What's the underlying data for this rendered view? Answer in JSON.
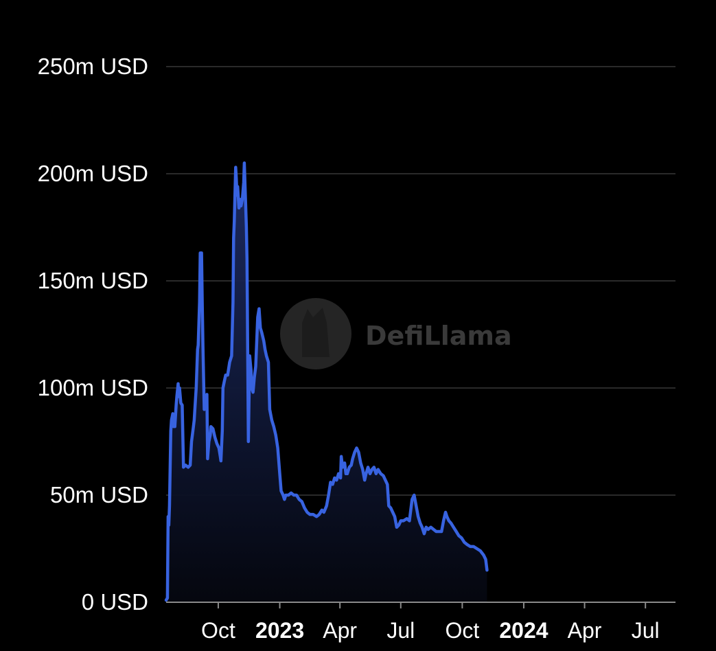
{
  "watermark": "DefiLlama",
  "colors": {
    "line": "#3863e0",
    "grid": "#2a2a2a",
    "text": "#ffffff",
    "background": "#000000"
  },
  "chart_data": {
    "type": "area",
    "title": "",
    "xlabel": "",
    "ylabel": "",
    "ylim": [
      0,
      250
    ],
    "y_unit": "m USD",
    "grid": true,
    "y_ticks": [
      {
        "value": 0,
        "label": "0 USD"
      },
      {
        "value": 50,
        "label": "50m USD"
      },
      {
        "value": 100,
        "label": "100m USD"
      },
      {
        "value": 150,
        "label": "150m USD"
      },
      {
        "value": 200,
        "label": "200m USD"
      },
      {
        "value": 250,
        "label": "250m USD"
      }
    ],
    "xlim": [
      "2022-07-15",
      "2024-08-15"
    ],
    "x_ticks": [
      {
        "date": "2022-10-01",
        "label": "Oct",
        "bold": false
      },
      {
        "date": "2023-01-01",
        "label": "2023",
        "bold": true
      },
      {
        "date": "2023-04-01",
        "label": "Apr",
        "bold": false
      },
      {
        "date": "2023-07-01",
        "label": "Jul",
        "bold": false
      },
      {
        "date": "2023-10-01",
        "label": "Oct",
        "bold": false
      },
      {
        "date": "2024-01-01",
        "label": "2024",
        "bold": true
      },
      {
        "date": "2024-04-01",
        "label": "Apr",
        "bold": false
      },
      {
        "date": "2024-07-01",
        "label": "Jul",
        "bold": false
      }
    ],
    "series": [
      {
        "values": [
          [
            "2022-07-15",
            1
          ],
          [
            "2022-07-17",
            2
          ],
          [
            "2022-07-18",
            40
          ],
          [
            "2022-07-19",
            36
          ],
          [
            "2022-07-20",
            45
          ],
          [
            "2022-07-22",
            80
          ],
          [
            "2022-07-23",
            85
          ],
          [
            "2022-07-25",
            88
          ],
          [
            "2022-07-26",
            82
          ],
          [
            "2022-07-27",
            86
          ],
          [
            "2022-07-28",
            82
          ],
          [
            "2022-07-30",
            92
          ],
          [
            "2022-07-31",
            96
          ],
          [
            "2022-08-02",
            102
          ],
          [
            "2022-08-03",
            96
          ],
          [
            "2022-08-04",
            100
          ],
          [
            "2022-08-06",
            93
          ],
          [
            "2022-08-08",
            92
          ],
          [
            "2022-08-10",
            63
          ],
          [
            "2022-08-13",
            64
          ],
          [
            "2022-08-17",
            63
          ],
          [
            "2022-08-20",
            64
          ],
          [
            "2022-08-22",
            75
          ],
          [
            "2022-08-24",
            80
          ],
          [
            "2022-08-26",
            85
          ],
          [
            "2022-08-28",
            95
          ],
          [
            "2022-08-29",
            100
          ],
          [
            "2022-08-31",
            118
          ],
          [
            "2022-09-01",
            120
          ],
          [
            "2022-09-03",
            140
          ],
          [
            "2022-09-04",
            163
          ],
          [
            "2022-09-05",
            155
          ],
          [
            "2022-09-06",
            163
          ],
          [
            "2022-09-07",
            140
          ],
          [
            "2022-09-08",
            120
          ],
          [
            "2022-09-10",
            90
          ],
          [
            "2022-09-12",
            95
          ],
          [
            "2022-09-14",
            97
          ],
          [
            "2022-09-15",
            67
          ],
          [
            "2022-09-17",
            75
          ],
          [
            "2022-09-19",
            78
          ],
          [
            "2022-09-20",
            82
          ],
          [
            "2022-09-23",
            81
          ],
          [
            "2022-09-26",
            77
          ],
          [
            "2022-09-29",
            74
          ],
          [
            "2022-10-02",
            72
          ],
          [
            "2022-10-04",
            68
          ],
          [
            "2022-10-05",
            66
          ],
          [
            "2022-10-07",
            80
          ],
          [
            "2022-10-08",
            100
          ],
          [
            "2022-10-10",
            103
          ],
          [
            "2022-10-12",
            106
          ],
          [
            "2022-10-15",
            106
          ],
          [
            "2022-10-18",
            112
          ],
          [
            "2022-10-21",
            115
          ],
          [
            "2022-10-23",
            140
          ],
          [
            "2022-10-24",
            170
          ],
          [
            "2022-10-25",
            178
          ],
          [
            "2022-10-27",
            203
          ],
          [
            "2022-10-28",
            198
          ],
          [
            "2022-10-29",
            190
          ],
          [
            "2022-10-30",
            194
          ],
          [
            "2022-11-01",
            184
          ],
          [
            "2022-11-03",
            188
          ],
          [
            "2022-11-04",
            185
          ],
          [
            "2022-11-06",
            188
          ],
          [
            "2022-11-08",
            196
          ],
          [
            "2022-11-09",
            205
          ],
          [
            "2022-11-10",
            195
          ],
          [
            "2022-11-12",
            175
          ],
          [
            "2022-11-13",
            160
          ],
          [
            "2022-11-15",
            75
          ],
          [
            "2022-11-17",
            115
          ],
          [
            "2022-11-19",
            108
          ],
          [
            "2022-11-20",
            100
          ],
          [
            "2022-11-22",
            98
          ],
          [
            "2022-11-24",
            105
          ],
          [
            "2022-11-26",
            110
          ],
          [
            "2022-11-29",
            133
          ],
          [
            "2022-12-01",
            137
          ],
          [
            "2022-12-03",
            128
          ],
          [
            "2022-12-05",
            126
          ],
          [
            "2022-12-08",
            122
          ],
          [
            "2022-12-10",
            118
          ],
          [
            "2022-12-12",
            115
          ],
          [
            "2022-12-15",
            112
          ],
          [
            "2022-12-17",
            90
          ],
          [
            "2022-12-20",
            85
          ],
          [
            "2022-12-23",
            82
          ],
          [
            "2022-12-26",
            78
          ],
          [
            "2022-12-29",
            72
          ],
          [
            "2023-01-01",
            60
          ],
          [
            "2023-01-03",
            52
          ],
          [
            "2023-01-06",
            50
          ],
          [
            "2023-01-08",
            48
          ],
          [
            "2023-01-10",
            50
          ],
          [
            "2023-01-14",
            50
          ],
          [
            "2023-01-18",
            51
          ],
          [
            "2023-01-22",
            50
          ],
          [
            "2023-01-26",
            50
          ],
          [
            "2023-01-30",
            48
          ],
          [
            "2023-02-03",
            47
          ],
          [
            "2023-02-07",
            44
          ],
          [
            "2023-02-11",
            42
          ],
          [
            "2023-02-15",
            41
          ],
          [
            "2023-02-20",
            41
          ],
          [
            "2023-02-25",
            40
          ],
          [
            "2023-03-01",
            41
          ],
          [
            "2023-03-05",
            43
          ],
          [
            "2023-03-08",
            42
          ],
          [
            "2023-03-12",
            45
          ],
          [
            "2023-03-15",
            50
          ],
          [
            "2023-03-18",
            56
          ],
          [
            "2023-03-21",
            55
          ],
          [
            "2023-03-24",
            58
          ],
          [
            "2023-03-27",
            57
          ],
          [
            "2023-03-30",
            60
          ],
          [
            "2023-04-02",
            58
          ],
          [
            "2023-04-03",
            68
          ],
          [
            "2023-04-05",
            63
          ],
          [
            "2023-04-08",
            65
          ],
          [
            "2023-04-10",
            60
          ],
          [
            "2023-04-12",
            60
          ],
          [
            "2023-04-15",
            63
          ],
          [
            "2023-04-18",
            64
          ],
          [
            "2023-04-20",
            67
          ],
          [
            "2023-04-23",
            70
          ],
          [
            "2023-04-26",
            72
          ],
          [
            "2023-04-29",
            70
          ],
          [
            "2023-05-02",
            65
          ],
          [
            "2023-05-05",
            62
          ],
          [
            "2023-05-08",
            57
          ],
          [
            "2023-05-10",
            60
          ],
          [
            "2023-05-13",
            63
          ],
          [
            "2023-05-16",
            60
          ],
          [
            "2023-05-19",
            62
          ],
          [
            "2023-05-22",
            63
          ],
          [
            "2023-05-25",
            60
          ],
          [
            "2023-05-28",
            62
          ],
          [
            "2023-06-01",
            60
          ],
          [
            "2023-06-05",
            59
          ],
          [
            "2023-06-08",
            57
          ],
          [
            "2023-06-11",
            55
          ],
          [
            "2023-06-13",
            45
          ],
          [
            "2023-06-16",
            44
          ],
          [
            "2023-06-19",
            42
          ],
          [
            "2023-06-22",
            40
          ],
          [
            "2023-06-25",
            35
          ],
          [
            "2023-06-28",
            36
          ],
          [
            "2023-07-01",
            38
          ],
          [
            "2023-07-05",
            38
          ],
          [
            "2023-07-10",
            39
          ],
          [
            "2023-07-14",
            38
          ],
          [
            "2023-07-18",
            48
          ],
          [
            "2023-07-21",
            50
          ],
          [
            "2023-07-24",
            45
          ],
          [
            "2023-07-27",
            40
          ],
          [
            "2023-07-30",
            37
          ],
          [
            "2023-08-02",
            35
          ],
          [
            "2023-08-05",
            32
          ],
          [
            "2023-08-08",
            35
          ],
          [
            "2023-08-11",
            34
          ],
          [
            "2023-08-15",
            35
          ],
          [
            "2023-08-19",
            34
          ],
          [
            "2023-08-23",
            33
          ],
          [
            "2023-08-27",
            33
          ],
          [
            "2023-08-31",
            33
          ],
          [
            "2023-09-03",
            38
          ],
          [
            "2023-09-06",
            42
          ],
          [
            "2023-09-08",
            40
          ],
          [
            "2023-09-11",
            38
          ],
          [
            "2023-09-14",
            37
          ],
          [
            "2023-09-18",
            35
          ],
          [
            "2023-09-22",
            33
          ],
          [
            "2023-09-26",
            31
          ],
          [
            "2023-09-30",
            30
          ],
          [
            "2023-10-04",
            28
          ],
          [
            "2023-10-08",
            27
          ],
          [
            "2023-10-13",
            26
          ],
          [
            "2023-10-18",
            26
          ],
          [
            "2023-10-23",
            25
          ],
          [
            "2023-10-28",
            24
          ],
          [
            "2023-11-02",
            22
          ],
          [
            "2023-11-05",
            20
          ],
          [
            "2023-11-07",
            15
          ]
        ]
      }
    ]
  }
}
